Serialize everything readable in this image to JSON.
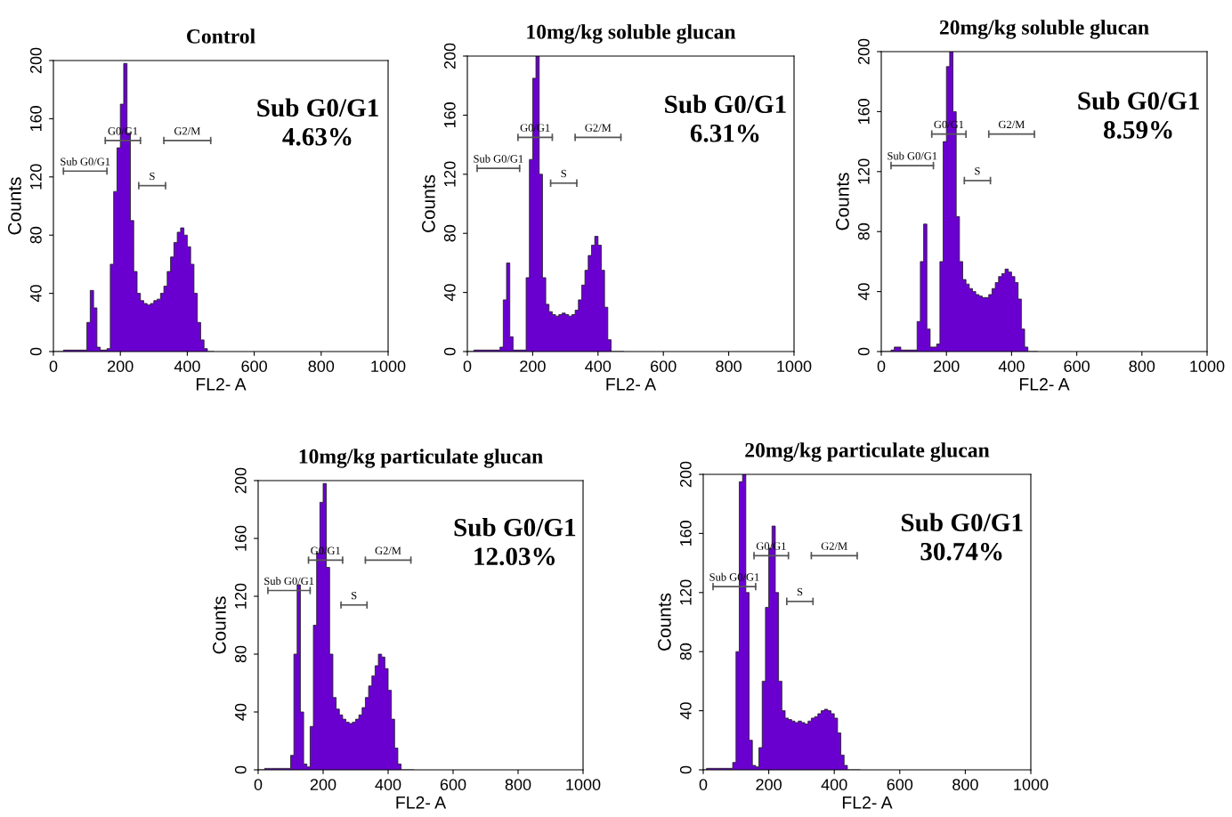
{
  "chart_data": [
    {
      "type": "histogram",
      "title": "Control",
      "xlabel": "FL2- A",
      "ylabel": "Counts",
      "color": "#6a00d0",
      "xlim": [
        0,
        1000
      ],
      "ylim": [
        0,
        200
      ],
      "xticks": [
        0,
        200,
        400,
        600,
        800,
        1000
      ],
      "yticks": [
        0,
        40,
        80,
        120,
        160,
        200
      ],
      "bins": [
        0,
        10,
        20,
        30,
        40,
        50,
        60,
        70,
        80,
        90,
        100,
        110,
        120,
        130,
        140,
        150,
        160,
        170,
        180,
        190,
        200,
        210,
        220,
        230,
        240,
        250,
        260,
        270,
        280,
        290,
        300,
        310,
        320,
        330,
        340,
        350,
        360,
        370,
        380,
        390,
        400,
        410,
        420,
        430,
        440,
        450,
        460,
        470,
        480
      ],
      "values": [
        0,
        0,
        0,
        1,
        1,
        1,
        1,
        1,
        1,
        1,
        20,
        42,
        30,
        3,
        1,
        1,
        2,
        60,
        110,
        140,
        170,
        198,
        150,
        90,
        55,
        40,
        35,
        33,
        32,
        33,
        35,
        36,
        40,
        45,
        55,
        65,
        75,
        82,
        85,
        80,
        72,
        60,
        40,
        20,
        8,
        2,
        0,
        0
      ],
      "annotations": [
        "Sub G0/G1\n4.63%",
        "Sub G0/G1",
        "G0/G1",
        "S",
        "G2/M"
      ]
    },
    {
      "type": "histogram",
      "title": "10mg/kg soluble glucan",
      "xlabel": "FL2- A",
      "ylabel": "Counts",
      "color": "#6a00d0",
      "xlim": [
        0,
        1000
      ],
      "ylim": [
        0,
        200
      ],
      "xticks": [
        0,
        200,
        400,
        600,
        800,
        1000
      ],
      "yticks": [
        0,
        40,
        80,
        120,
        160,
        200
      ],
      "bins": [
        0,
        10,
        20,
        30,
        40,
        50,
        60,
        70,
        80,
        90,
        100,
        110,
        120,
        130,
        140,
        150,
        160,
        170,
        180,
        190,
        200,
        210,
        220,
        230,
        240,
        250,
        260,
        270,
        280,
        290,
        300,
        310,
        320,
        330,
        340,
        350,
        360,
        370,
        380,
        390,
        400,
        410,
        420,
        430,
        440,
        450,
        460,
        470,
        480
      ],
      "values": [
        0,
        0,
        1,
        1,
        1,
        1,
        1,
        1,
        1,
        1,
        3,
        35,
        60,
        10,
        1,
        1,
        1,
        1,
        50,
        130,
        185,
        200,
        120,
        50,
        32,
        27,
        25,
        24,
        25,
        26,
        25,
        24,
        25,
        28,
        35,
        45,
        55,
        65,
        72,
        78,
        72,
        55,
        30,
        8,
        0,
        0,
        0,
        0
      ],
      "annotations": [
        "Sub G0/G1\n6.31%",
        "Sub G0/G1",
        "G0/G1",
        "S",
        "G2/M"
      ]
    },
    {
      "type": "histogram",
      "title": "20mg/kg soluble glucan",
      "xlabel": "FL2- A",
      "ylabel": "Counts",
      "color": "#6a00d0",
      "xlim": [
        0,
        1000
      ],
      "ylim": [
        0,
        200
      ],
      "xticks": [
        0,
        200,
        400,
        600,
        800,
        1000
      ],
      "yticks": [
        0,
        40,
        80,
        120,
        160,
        200
      ],
      "bins": [
        0,
        10,
        20,
        30,
        40,
        50,
        60,
        70,
        80,
        90,
        100,
        110,
        120,
        130,
        140,
        150,
        160,
        170,
        180,
        190,
        200,
        210,
        220,
        230,
        240,
        250,
        260,
        270,
        280,
        290,
        300,
        310,
        320,
        330,
        340,
        350,
        360,
        370,
        380,
        390,
        400,
        410,
        420,
        430,
        440,
        450,
        460,
        470,
        480
      ],
      "values": [
        0,
        0,
        0,
        1,
        3,
        3,
        1,
        1,
        1,
        1,
        1,
        20,
        60,
        85,
        15,
        3,
        3,
        5,
        60,
        140,
        190,
        200,
        160,
        90,
        60,
        48,
        45,
        42,
        40,
        38,
        37,
        36,
        36,
        38,
        42,
        46,
        50,
        52,
        55,
        53,
        50,
        46,
        35,
        15,
        3,
        0,
        0,
        0
      ],
      "annotations": [
        "Sub G0/G1\n8.59%",
        "Sub G0/G1",
        "G0/G1",
        "S",
        "G2/M"
      ]
    },
    {
      "type": "histogram",
      "title": "10mg/kg particulate glucan",
      "xlabel": "FL2- A",
      "ylabel": "Counts",
      "color": "#6a00d0",
      "xlim": [
        0,
        1000
      ],
      "ylim": [
        0,
        200
      ],
      "xticks": [
        0,
        200,
        400,
        600,
        800,
        1000
      ],
      "yticks": [
        0,
        40,
        80,
        120,
        160,
        200
      ],
      "bins": [
        0,
        10,
        20,
        30,
        40,
        50,
        60,
        70,
        80,
        90,
        100,
        110,
        120,
        130,
        140,
        150,
        160,
        170,
        180,
        190,
        200,
        210,
        220,
        230,
        240,
        250,
        260,
        270,
        280,
        290,
        300,
        310,
        320,
        330,
        340,
        350,
        360,
        370,
        380,
        390,
        400,
        410,
        420,
        430,
        440,
        450,
        460,
        470,
        480
      ],
      "values": [
        0,
        0,
        1,
        1,
        1,
        1,
        1,
        1,
        1,
        1,
        10,
        80,
        128,
        40,
        4,
        2,
        30,
        100,
        150,
        185,
        198,
        140,
        80,
        50,
        42,
        38,
        35,
        33,
        32,
        33,
        35,
        38,
        43,
        50,
        58,
        65,
        72,
        80,
        78,
        70,
        55,
        35,
        15,
        4,
        0,
        0,
        0,
        0
      ],
      "annotations": [
        "Sub G0/G1\n12.03%",
        "Sub G0/G1",
        "G0/G1",
        "S",
        "G2/M"
      ]
    },
    {
      "type": "histogram",
      "title": "20mg/kg particulate glucan",
      "xlabel": "FL2- A",
      "ylabel": "Counts",
      "color": "#6a00d0",
      "xlim": [
        0,
        1000
      ],
      "ylim": [
        0,
        200
      ],
      "xticks": [
        0,
        200,
        400,
        600,
        800,
        1000
      ],
      "yticks": [
        0,
        40,
        80,
        120,
        160,
        200
      ],
      "bins": [
        0,
        10,
        20,
        30,
        40,
        50,
        60,
        70,
        80,
        90,
        100,
        110,
        120,
        130,
        140,
        150,
        160,
        170,
        180,
        190,
        200,
        210,
        220,
        230,
        240,
        250,
        260,
        270,
        280,
        290,
        300,
        310,
        320,
        330,
        340,
        350,
        360,
        370,
        380,
        390,
        400,
        410,
        420,
        430,
        440,
        450,
        460,
        470,
        480
      ],
      "values": [
        0,
        1,
        1,
        1,
        1,
        1,
        1,
        1,
        1,
        5,
        80,
        195,
        200,
        120,
        20,
        3,
        2,
        15,
        60,
        110,
        150,
        165,
        120,
        60,
        40,
        35,
        34,
        33,
        32,
        33,
        32,
        31,
        33,
        35,
        36,
        38,
        40,
        41,
        40,
        38,
        35,
        25,
        10,
        3,
        0,
        0,
        0,
        0
      ],
      "annotations": [
        "Sub G0/G1\n30.74%",
        "Sub G0/G1",
        "G0/G1",
        "S",
        "G2/M"
      ]
    }
  ]
}
